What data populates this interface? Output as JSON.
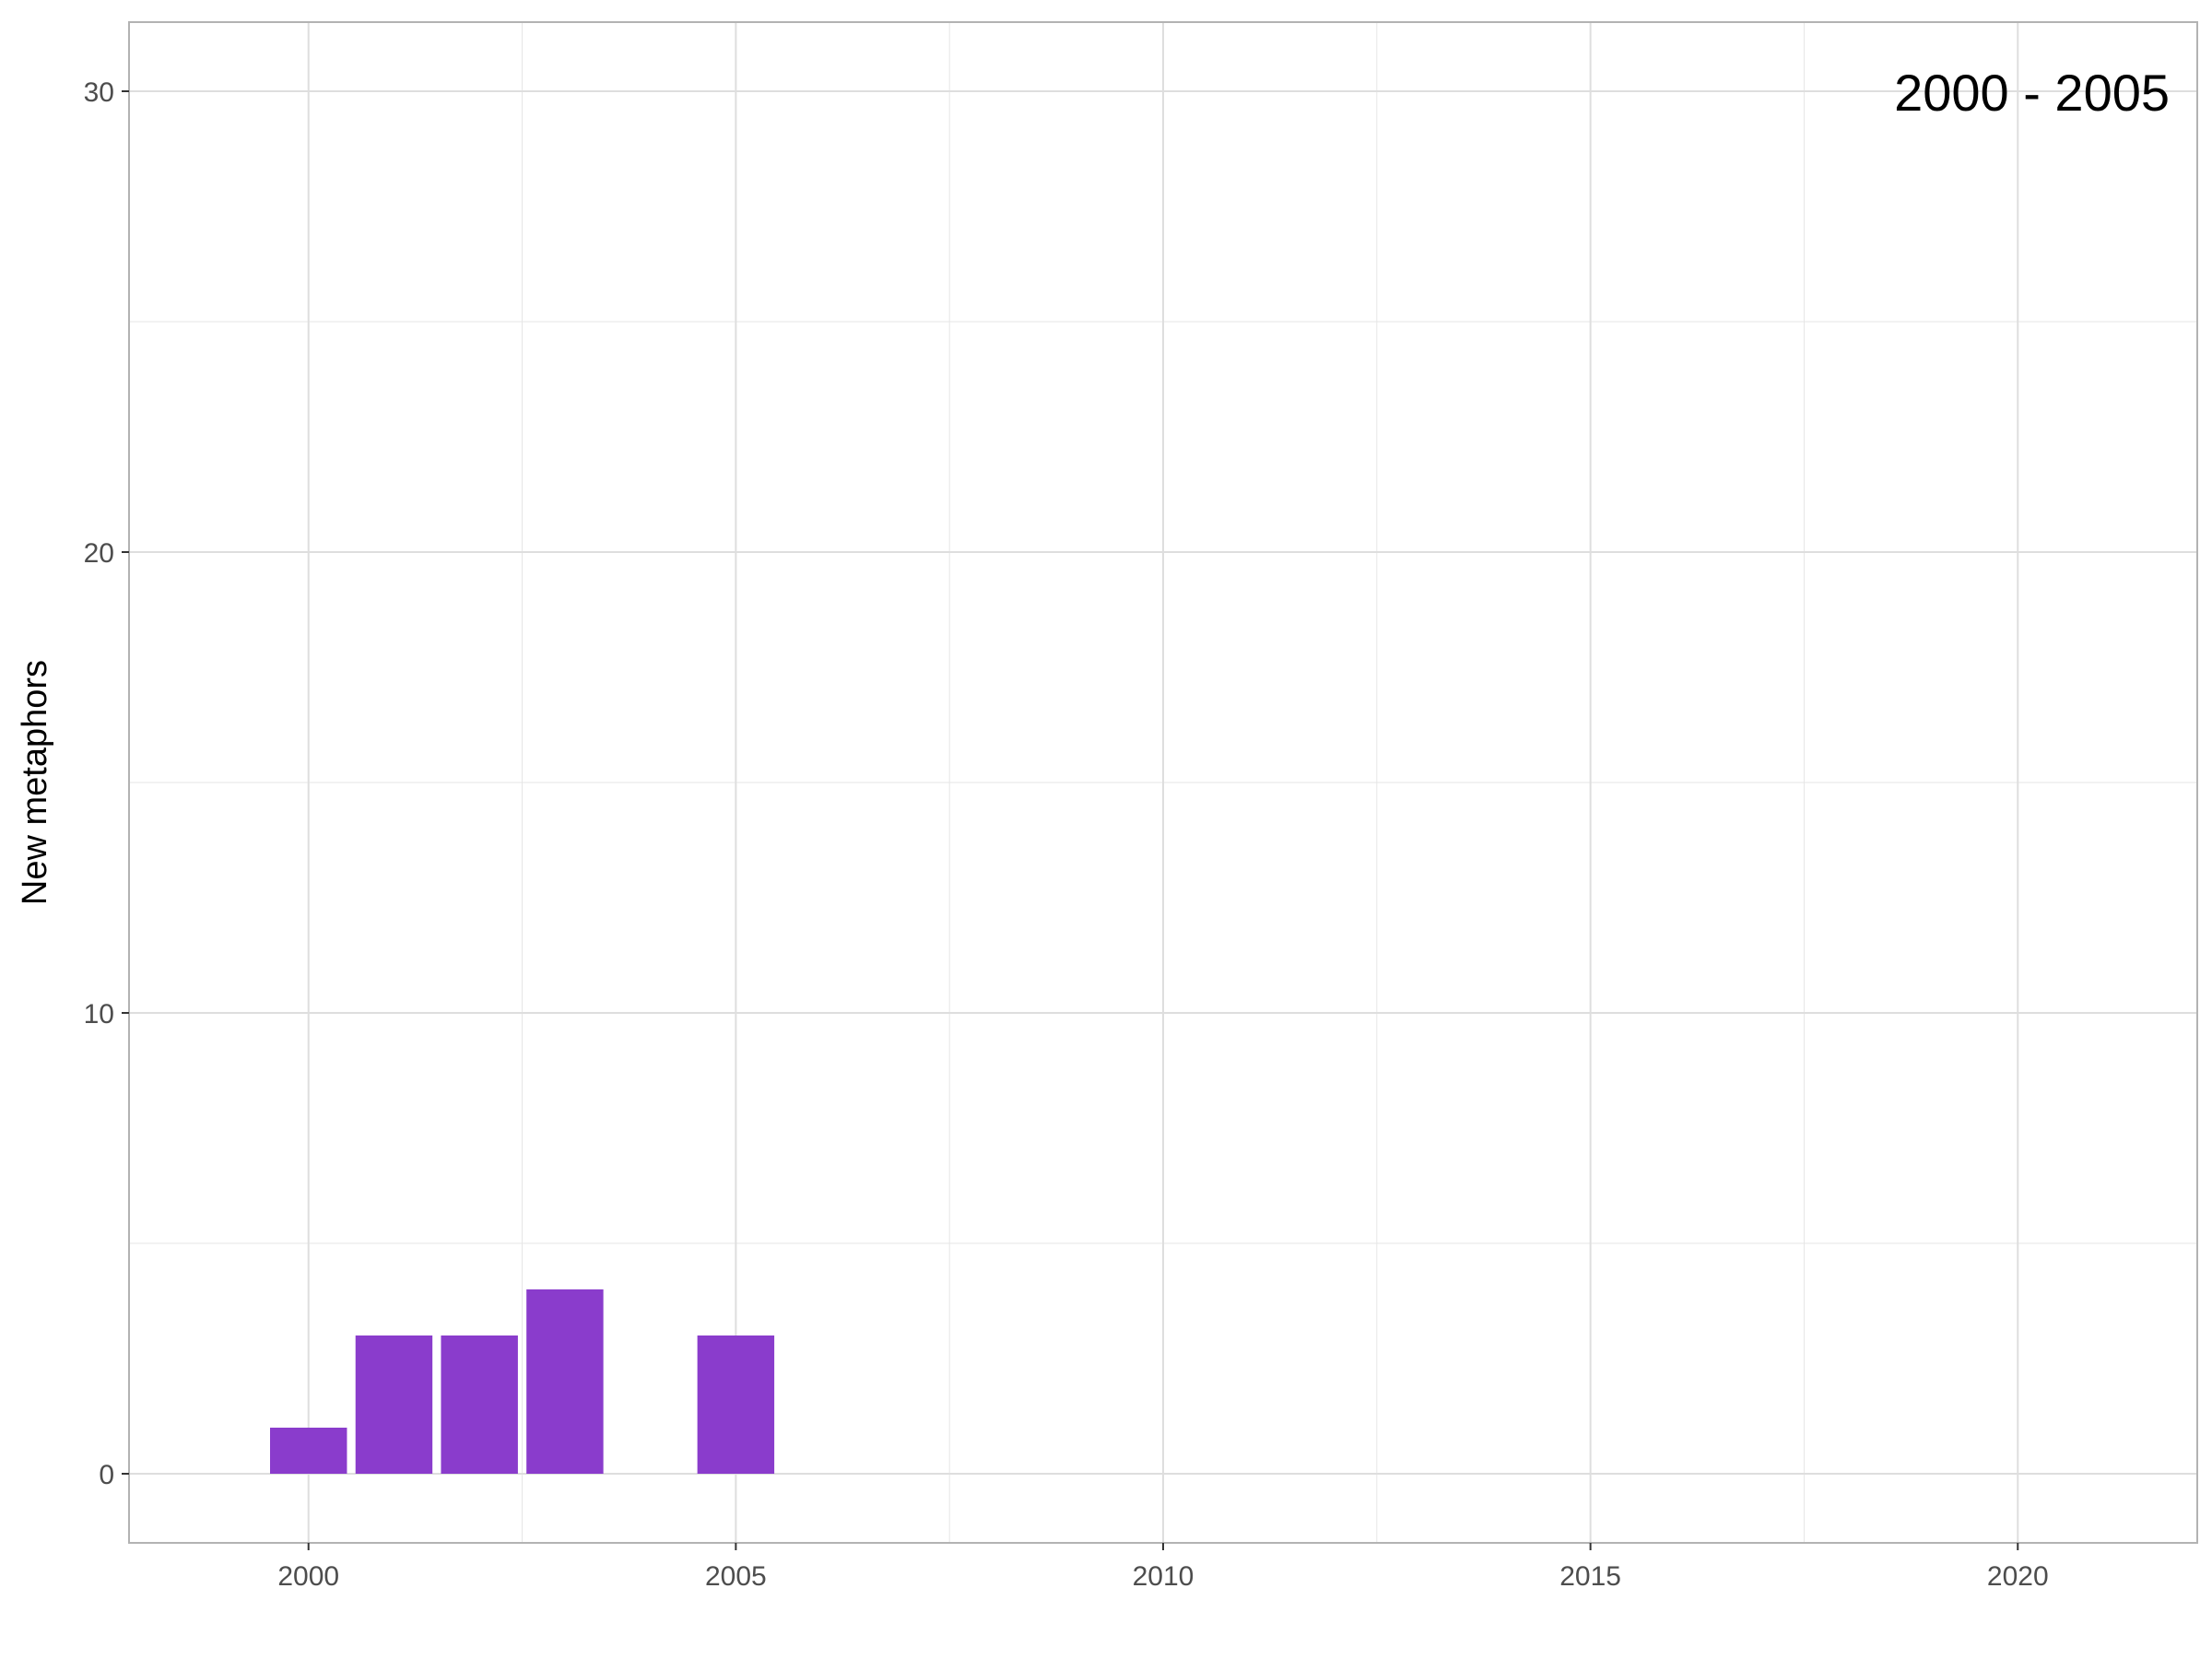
{
  "chart_data": {
    "type": "bar",
    "title": "",
    "annotation": "2000 - 2005",
    "xlabel": "",
    "ylabel": "New metaphors",
    "x": [
      2000,
      2001,
      2002,
      2003,
      2004,
      2005
    ],
    "values": [
      1,
      3,
      3,
      4,
      0,
      3
    ],
    "xlim": [
      1997.9,
      2022.1
    ],
    "ylim": [
      -1.5,
      31.5
    ],
    "x_ticks": [
      2000,
      2005,
      2010,
      2015,
      2020
    ],
    "x_tick_labels": [
      "2000",
      "2005",
      "2010",
      "2015",
      "2020"
    ],
    "y_ticks": [
      0,
      10,
      20,
      30
    ],
    "y_tick_labels": [
      "0",
      "10",
      "20",
      "30"
    ],
    "grid": true,
    "bar_color": "#8a3ccc",
    "grid_color": "#e6e6e6",
    "panel_border_color": "#b3b3b3"
  }
}
